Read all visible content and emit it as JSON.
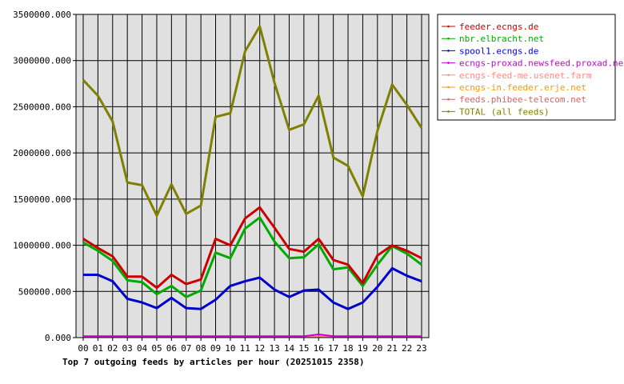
{
  "chart_data": {
    "type": "line",
    "title": "Top 7 outgoing feeds by articles per hour (20251015 2358)",
    "xlabel": "",
    "ylabel": "",
    "x": [
      "00",
      "01",
      "02",
      "03",
      "04",
      "05",
      "06",
      "07",
      "08",
      "09",
      "10",
      "11",
      "12",
      "13",
      "14",
      "15",
      "16",
      "17",
      "18",
      "19",
      "20",
      "21",
      "22",
      "23"
    ],
    "y_ticks": [
      "0.000",
      "500000.000",
      "1000000.000",
      "1500000.000",
      "2000000.000",
      "2500000.000",
      "3000000.000",
      "3500000.000"
    ],
    "ylim": [
      0,
      3500000
    ],
    "grid": true,
    "legend_position": "right",
    "plot_background": "#e0e0e0",
    "series": [
      {
        "name": "feeder.ecngs.de",
        "color": "#cc0000",
        "values": [
          1070000,
          970000,
          880000,
          660000,
          660000,
          540000,
          680000,
          580000,
          630000,
          1070000,
          1000000,
          1290000,
          1410000,
          1190000,
          960000,
          930000,
          1070000,
          840000,
          790000,
          590000,
          890000,
          1000000,
          940000,
          860000
        ]
      },
      {
        "name": "nbr.elbracht.net",
        "color": "#00aa00",
        "values": [
          1030000,
          940000,
          830000,
          620000,
          600000,
          470000,
          560000,
          440000,
          510000,
          920000,
          860000,
          1180000,
          1300000,
          1040000,
          860000,
          870000,
          1010000,
          740000,
          760000,
          560000,
          790000,
          990000,
          910000,
          790000
        ]
      },
      {
        "name": "spool1.ecngs.de",
        "color": "#0000cc",
        "values": [
          680000,
          680000,
          610000,
          420000,
          380000,
          320000,
          430000,
          320000,
          310000,
          410000,
          560000,
          610000,
          650000,
          520000,
          440000,
          510000,
          520000,
          380000,
          310000,
          380000,
          550000,
          750000,
          670000,
          610000
        ]
      },
      {
        "name": "ecngs-proxad.newsfeed.proxad.net",
        "color": "#cc00cc",
        "values": [
          15000,
          15000,
          15000,
          15000,
          15000,
          15000,
          15000,
          15000,
          15000,
          15000,
          15000,
          15000,
          15000,
          15000,
          15000,
          15000,
          35000,
          15000,
          15000,
          15000,
          15000,
          15000,
          15000,
          15000
        ]
      },
      {
        "name": "ecngs-feed-me.usenet.farm",
        "color": "#ff8888",
        "values": [
          10000,
          10000,
          10000,
          10000,
          10000,
          10000,
          10000,
          10000,
          10000,
          10000,
          10000,
          10000,
          10000,
          10000,
          10000,
          10000,
          10000,
          10000,
          10000,
          10000,
          10000,
          10000,
          10000,
          10000
        ]
      },
      {
        "name": "ecngs-in.feeder.erje.net",
        "color": "#ff9900",
        "values": [
          8000,
          8000,
          8000,
          8000,
          8000,
          8000,
          8000,
          8000,
          8000,
          8000,
          8000,
          8000,
          8000,
          8000,
          8000,
          8000,
          8000,
          8000,
          8000,
          8000,
          8000,
          8000,
          8000,
          8000
        ]
      },
      {
        "name": "feeds.phibee-telecom.net",
        "color": "#cc6666",
        "values": [
          5000,
          5000,
          5000,
          5000,
          5000,
          5000,
          5000,
          5000,
          5000,
          5000,
          5000,
          5000,
          5000,
          5000,
          5000,
          5000,
          5000,
          5000,
          5000,
          5000,
          5000,
          5000,
          5000,
          5000
        ]
      },
      {
        "name": "TOTAL (all feeds)",
        "color": "#808000",
        "values": [
          2790000,
          2620000,
          2340000,
          1680000,
          1650000,
          1320000,
          1660000,
          1340000,
          1430000,
          2390000,
          2430000,
          3100000,
          3370000,
          2760000,
          2250000,
          2310000,
          2620000,
          1950000,
          1860000,
          1530000,
          2240000,
          2740000,
          2520000,
          2270000
        ]
      }
    ]
  }
}
